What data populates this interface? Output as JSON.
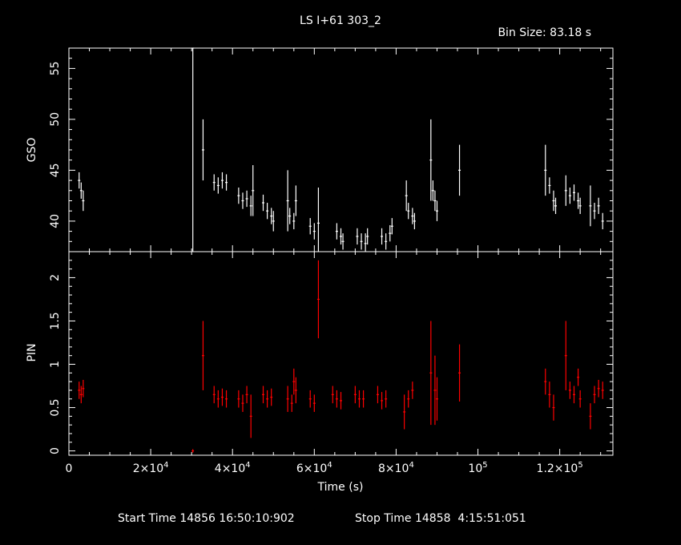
{
  "header": {
    "title": "LS I+61 303_2",
    "bin_size": "Bin Size: 83.18 s"
  },
  "footer": {
    "start_time": "Start Time 14856 16:50:10:902",
    "stop_time": "Stop Time 14858  4:15:51:051"
  },
  "colors": {
    "gso": "#ffffff",
    "pin": "#ff0000",
    "axes": "#ffffff",
    "background": "#000000"
  },
  "chart_data": [
    {
      "type": "scatter",
      "panel": "top",
      "ylabel": "GSO",
      "xlabel": "",
      "xlim": [
        0,
        133000
      ],
      "ylim": [
        37,
        57
      ],
      "ytick_values": [
        40,
        45,
        50,
        55
      ],
      "ytick_labels": [
        "40",
        "45",
        "50",
        "55"
      ],
      "series": [
        {
          "color": "#ffffff",
          "points": [
            {
              "x": 2500,
              "y": 44.0,
              "e": 0.8
            },
            {
              "x": 3000,
              "y": 43.0,
              "e": 0.8
            },
            {
              "x": 3500,
              "y": 42.0,
              "e": 1.0
            },
            {
              "x": 30300,
              "y": 57.0,
              "e": 20.0
            },
            {
              "x": 32800,
              "y": 47.0,
              "e": 3.0
            },
            {
              "x": 35500,
              "y": 43.8,
              "e": 0.8
            },
            {
              "x": 36500,
              "y": 43.5,
              "e": 0.8
            },
            {
              "x": 37500,
              "y": 44.0,
              "e": 0.8
            },
            {
              "x": 38500,
              "y": 43.8,
              "e": 0.8
            },
            {
              "x": 41500,
              "y": 42.5,
              "e": 0.8
            },
            {
              "x": 42500,
              "y": 42.0,
              "e": 0.8
            },
            {
              "x": 43500,
              "y": 42.2,
              "e": 0.8
            },
            {
              "x": 44500,
              "y": 41.5,
              "e": 1.0
            },
            {
              "x": 45000,
              "y": 43.0,
              "e": 2.5
            },
            {
              "x": 47500,
              "y": 41.8,
              "e": 0.8
            },
            {
              "x": 48500,
              "y": 41.0,
              "e": 0.8
            },
            {
              "x": 49500,
              "y": 40.5,
              "e": 0.8
            },
            {
              "x": 50000,
              "y": 40.0,
              "e": 1.0
            },
            {
              "x": 53500,
              "y": 42.0,
              "e": 3.0
            },
            {
              "x": 54000,
              "y": 40.5,
              "e": 0.8
            },
            {
              "x": 55000,
              "y": 40.0,
              "e": 0.8
            },
            {
              "x": 55500,
              "y": 42.0,
              "e": 1.5
            },
            {
              "x": 59000,
              "y": 39.5,
              "e": 0.8
            },
            {
              "x": 60000,
              "y": 39.0,
              "e": 0.8
            },
            {
              "x": 61000,
              "y": 39.8,
              "e": 3.5
            },
            {
              "x": 65500,
              "y": 39.0,
              "e": 0.8
            },
            {
              "x": 66500,
              "y": 38.5,
              "e": 0.8
            },
            {
              "x": 67000,
              "y": 38.0,
              "e": 0.8
            },
            {
              "x": 70500,
              "y": 38.5,
              "e": 0.8
            },
            {
              "x": 71500,
              "y": 38.0,
              "e": 0.8
            },
            {
              "x": 72500,
              "y": 37.8,
              "e": 1.0
            },
            {
              "x": 73000,
              "y": 38.5,
              "e": 0.8
            },
            {
              "x": 76500,
              "y": 38.5,
              "e": 0.8
            },
            {
              "x": 77500,
              "y": 38.0,
              "e": 0.8
            },
            {
              "x": 78500,
              "y": 38.8,
              "e": 0.8
            },
            {
              "x": 79000,
              "y": 39.5,
              "e": 0.8
            },
            {
              "x": 82500,
              "y": 42.5,
              "e": 1.5
            },
            {
              "x": 83000,
              "y": 41.0,
              "e": 0.8
            },
            {
              "x": 84000,
              "y": 40.5,
              "e": 0.8
            },
            {
              "x": 84500,
              "y": 40.0,
              "e": 0.8
            },
            {
              "x": 88500,
              "y": 46.0,
              "e": 4.0
            },
            {
              "x": 89000,
              "y": 43.0,
              "e": 1.0
            },
            {
              "x": 89500,
              "y": 42.0,
              "e": 1.0
            },
            {
              "x": 90000,
              "y": 41.0,
              "e": 1.0
            },
            {
              "x": 95500,
              "y": 45.0,
              "e": 2.5
            },
            {
              "x": 116500,
              "y": 45.0,
              "e": 2.5
            },
            {
              "x": 117500,
              "y": 43.5,
              "e": 0.8
            },
            {
              "x": 118500,
              "y": 42.0,
              "e": 1.0
            },
            {
              "x": 119000,
              "y": 41.5,
              "e": 0.8
            },
            {
              "x": 121500,
              "y": 43.0,
              "e": 1.5
            },
            {
              "x": 122500,
              "y": 42.5,
              "e": 0.8
            },
            {
              "x": 123500,
              "y": 42.8,
              "e": 0.8
            },
            {
              "x": 124500,
              "y": 42.0,
              "e": 0.8
            },
            {
              "x": 125000,
              "y": 41.5,
              "e": 0.8
            },
            {
              "x": 127500,
              "y": 41.5,
              "e": 2.0
            },
            {
              "x": 128500,
              "y": 41.0,
              "e": 0.8
            },
            {
              "x": 129500,
              "y": 41.5,
              "e": 0.8
            },
            {
              "x": 130500,
              "y": 40.0,
              "e": 0.8
            }
          ]
        }
      ]
    },
    {
      "type": "scatter",
      "panel": "bottom",
      "ylabel": "PIN",
      "xlabel": "Time (s)",
      "xlim": [
        0,
        133000
      ],
      "ylim": [
        -0.05,
        2.3
      ],
      "ytick_values": [
        0,
        0.5,
        1,
        1.5,
        2
      ],
      "ytick_labels": [
        "0",
        "0.5",
        "1",
        "1.5",
        "2"
      ],
      "xtick_values": [
        0,
        20000,
        40000,
        60000,
        80000,
        100000,
        120000
      ],
      "xtick_labels": [
        {
          "base": "0",
          "exp": ""
        },
        {
          "base": "2×10",
          "exp": "4"
        },
        {
          "base": "4×10",
          "exp": "4"
        },
        {
          "base": "6×10",
          "exp": "4"
        },
        {
          "base": "8×10",
          "exp": "4"
        },
        {
          "base": "10",
          "exp": "5"
        },
        {
          "base": "1.2×10",
          "exp": "5"
        }
      ],
      "series": [
        {
          "color": "#ff0000",
          "points": [
            {
              "x": 2500,
              "y": 0.7,
              "e": 0.1
            },
            {
              "x": 3000,
              "y": 0.65,
              "e": 0.1
            },
            {
              "x": 3500,
              "y": 0.72,
              "e": 0.1
            },
            {
              "x": 30300,
              "y": 0.0,
              "e": 0.02
            },
            {
              "x": 32800,
              "y": 1.1,
              "e": 0.4
            },
            {
              "x": 35500,
              "y": 0.65,
              "e": 0.1
            },
            {
              "x": 36500,
              "y": 0.6,
              "e": 0.1
            },
            {
              "x": 37500,
              "y": 0.62,
              "e": 0.1
            },
            {
              "x": 38500,
              "y": 0.6,
              "e": 0.1
            },
            {
              "x": 41500,
              "y": 0.6,
              "e": 0.1
            },
            {
              "x": 42500,
              "y": 0.55,
              "e": 0.1
            },
            {
              "x": 43500,
              "y": 0.65,
              "e": 0.1
            },
            {
              "x": 44500,
              "y": 0.4,
              "e": 0.25
            },
            {
              "x": 47500,
              "y": 0.65,
              "e": 0.1
            },
            {
              "x": 48500,
              "y": 0.6,
              "e": 0.1
            },
            {
              "x": 49500,
              "y": 0.62,
              "e": 0.1
            },
            {
              "x": 53500,
              "y": 0.6,
              "e": 0.15
            },
            {
              "x": 54500,
              "y": 0.55,
              "e": 0.1
            },
            {
              "x": 55000,
              "y": 0.8,
              "e": 0.15
            },
            {
              "x": 55500,
              "y": 0.7,
              "e": 0.15
            },
            {
              "x": 59000,
              "y": 0.6,
              "e": 0.1
            },
            {
              "x": 60000,
              "y": 0.55,
              "e": 0.1
            },
            {
              "x": 61000,
              "y": 1.75,
              "e": 0.45
            },
            {
              "x": 64500,
              "y": 0.65,
              "e": 0.1
            },
            {
              "x": 65500,
              "y": 0.6,
              "e": 0.1
            },
            {
              "x": 66500,
              "y": 0.58,
              "e": 0.1
            },
            {
              "x": 70000,
              "y": 0.65,
              "e": 0.1
            },
            {
              "x": 71000,
              "y": 0.6,
              "e": 0.1
            },
            {
              "x": 72000,
              "y": 0.6,
              "e": 0.1
            },
            {
              "x": 75500,
              "y": 0.65,
              "e": 0.1
            },
            {
              "x": 76500,
              "y": 0.58,
              "e": 0.1
            },
            {
              "x": 77500,
              "y": 0.6,
              "e": 0.1
            },
            {
              "x": 82000,
              "y": 0.45,
              "e": 0.2
            },
            {
              "x": 83000,
              "y": 0.6,
              "e": 0.1
            },
            {
              "x": 84000,
              "y": 0.7,
              "e": 0.1
            },
            {
              "x": 88500,
              "y": 0.9,
              "e": 0.6
            },
            {
              "x": 89500,
              "y": 0.7,
              "e": 0.4
            },
            {
              "x": 90000,
              "y": 0.6,
              "e": 0.25
            },
            {
              "x": 95500,
              "y": 0.9,
              "e": 0.33
            },
            {
              "x": 116500,
              "y": 0.8,
              "e": 0.15
            },
            {
              "x": 117500,
              "y": 0.65,
              "e": 0.15
            },
            {
              "x": 118500,
              "y": 0.5,
              "e": 0.15
            },
            {
              "x": 121500,
              "y": 1.1,
              "e": 0.4
            },
            {
              "x": 122500,
              "y": 0.7,
              "e": 0.1
            },
            {
              "x": 123500,
              "y": 0.65,
              "e": 0.1
            },
            {
              "x": 124500,
              "y": 0.85,
              "e": 0.1
            },
            {
              "x": 125000,
              "y": 0.6,
              "e": 0.1
            },
            {
              "x": 127500,
              "y": 0.4,
              "e": 0.15
            },
            {
              "x": 128500,
              "y": 0.65,
              "e": 0.1
            },
            {
              "x": 129500,
              "y": 0.72,
              "e": 0.1
            },
            {
              "x": 130500,
              "y": 0.7,
              "e": 0.1
            }
          ]
        }
      ]
    }
  ]
}
